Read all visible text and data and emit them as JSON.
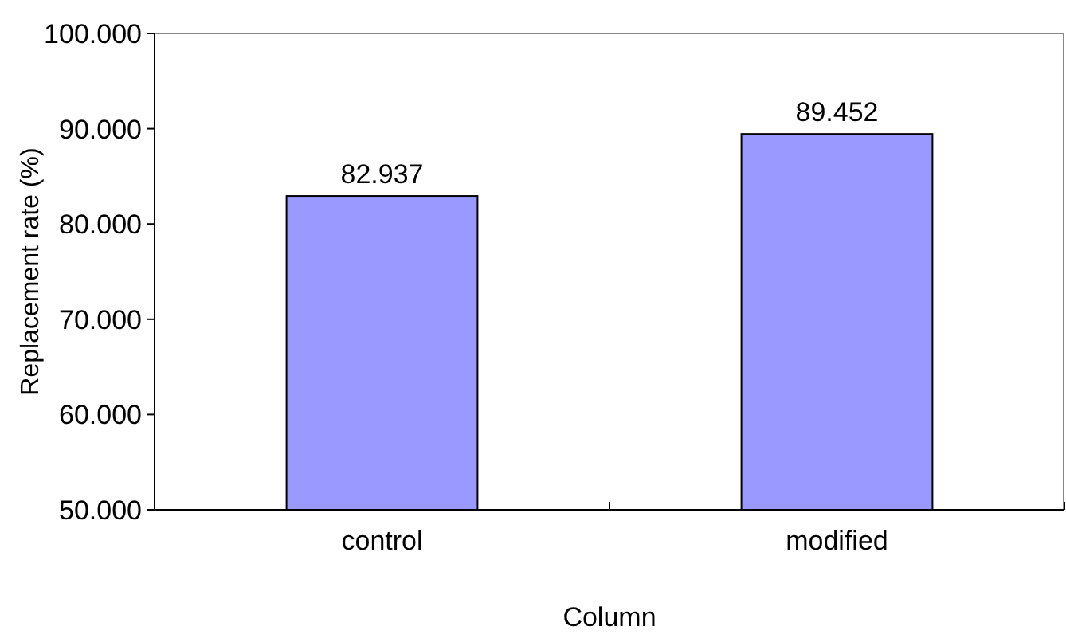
{
  "chart_data": {
    "type": "bar",
    "xlabel": "Column",
    "ylabel": "Replacement rate (%)",
    "categories": [
      "control",
      "modified"
    ],
    "values": [
      82.937,
      89.452
    ],
    "color": "#9999ff",
    "ylim": [
      50,
      100
    ],
    "yticks": [
      {
        "value": 50,
        "label": "50.000"
      },
      {
        "value": 60,
        "label": "60.000"
      },
      {
        "value": 70,
        "label": "70.000"
      },
      {
        "value": 80,
        "label": "80.000"
      },
      {
        "value": 90,
        "label": "90.000"
      },
      {
        "value": 100,
        "label": "100.000"
      }
    ],
    "data_labels": true
  }
}
